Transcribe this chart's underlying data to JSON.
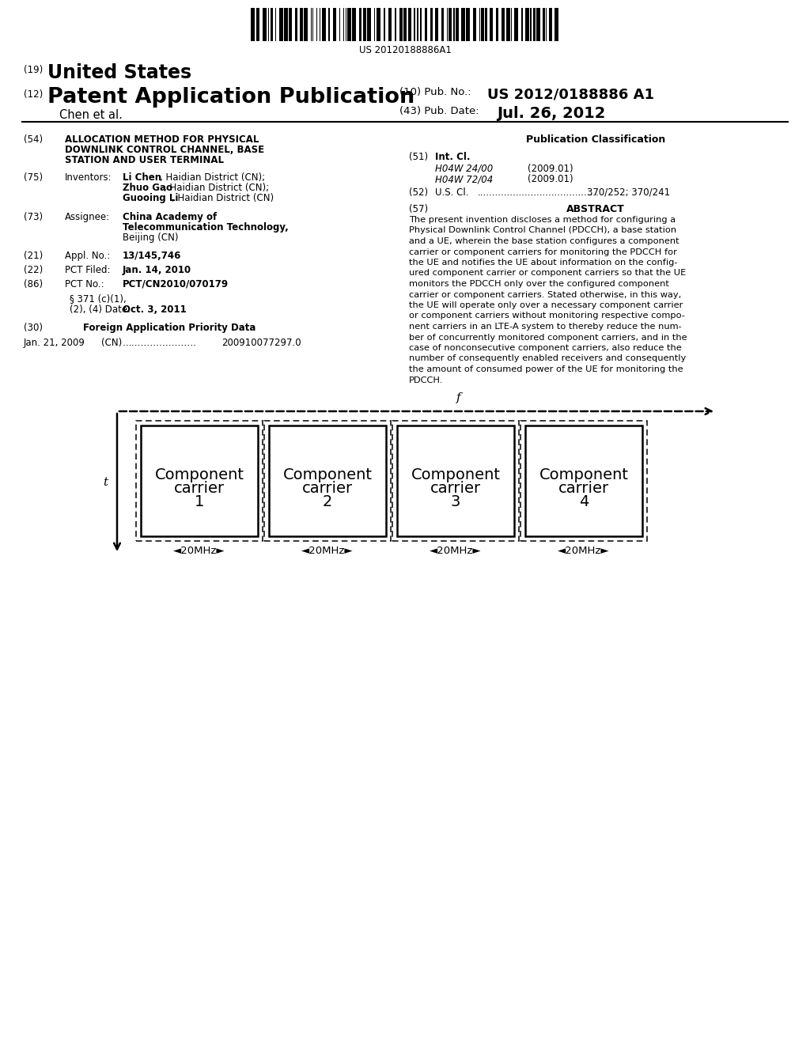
{
  "background_color": "#ffffff",
  "barcode_text": "US 20120188886A1",
  "diagram": {
    "carriers": [
      "Component\ncarrier\n1",
      "Component\ncarrier\n2",
      "Component\ncarrier\n3",
      "Component\ncarrier\n4"
    ],
    "f_label": "f",
    "t_label": "t"
  }
}
